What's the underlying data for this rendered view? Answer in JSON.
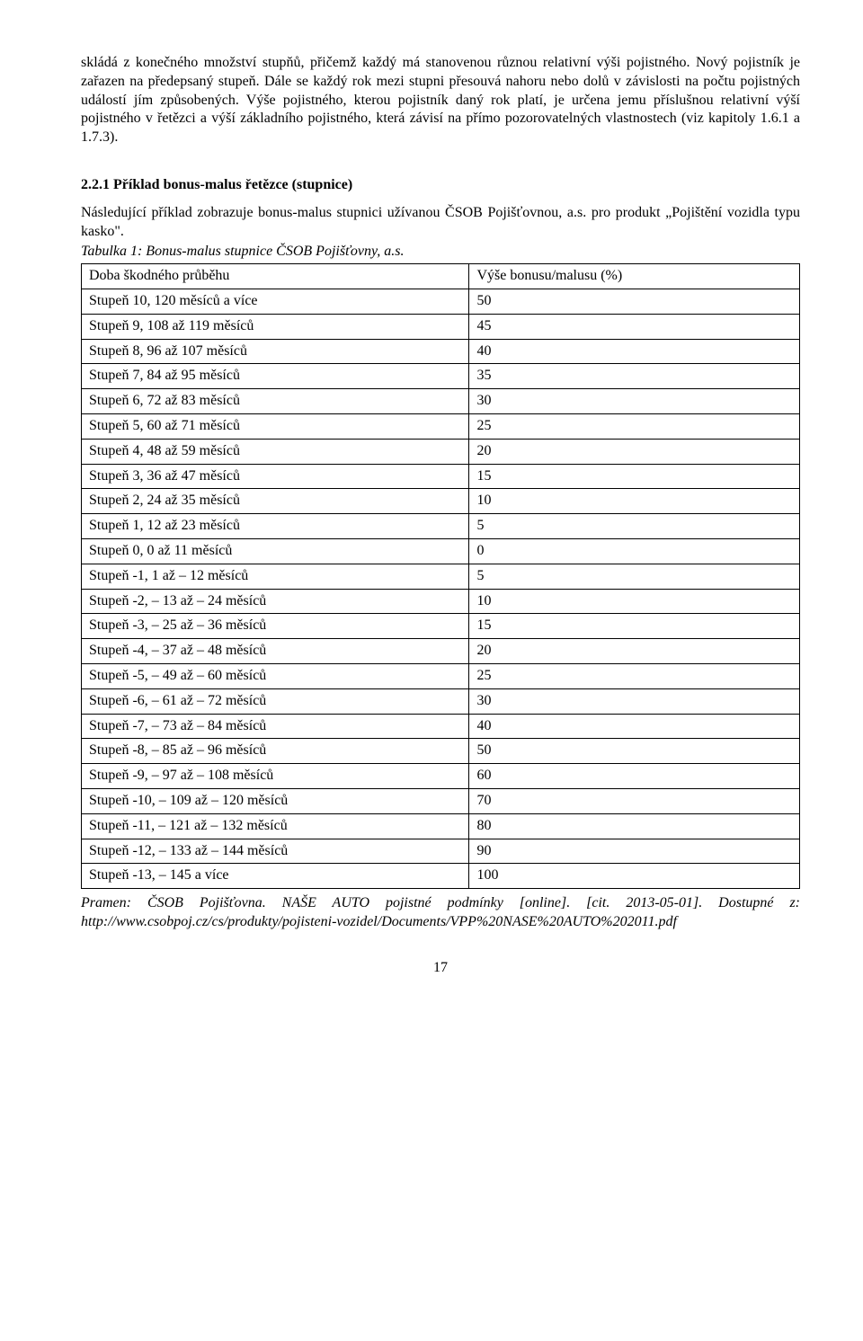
{
  "paragraph1": "skládá z konečného množství stupňů, přičemž každý má stanovenou různou relativní výši pojistného. Nový pojistník je zařazen na předepsaný stupeň. Dále se každý rok mezi stupni přesouvá nahoru nebo dolů v závislosti na počtu pojistných událostí jím způsobených. Výše pojistného, kterou pojistník daný rok platí, je určena jemu příslušnou relativní výší pojistného v řetězci a výší základního pojistného, která závisí na přímo pozorovatelných vlastnostech (viz kapitoly 1.6.1 a 1.7.3).",
  "heading": "2.2.1 Příklad bonus-malus řetězce (stupnice)",
  "intro": "Následující příklad zobrazuje bonus-malus stupnici užívanou ČSOB Pojišťovnou, a.s. pro produkt „Pojištění vozidla typu kasko\".",
  "caption": "Tabulka 1: Bonus-malus stupnice ČSOB Pojišťovny, a.s.",
  "table": {
    "header": [
      "Doba škodného průběhu",
      "Výše bonusu/malusu (%)"
    ],
    "rows": [
      [
        "Stupeň 10, 120 měsíců a více",
        "50"
      ],
      [
        "Stupeň 9, 108 až 119 měsíců",
        "45"
      ],
      [
        "Stupeň 8, 96 až 107 měsíců",
        "40"
      ],
      [
        "Stupeň 7, 84 až 95 měsíců",
        "35"
      ],
      [
        "Stupeň 6, 72 až 83 měsíců",
        "30"
      ],
      [
        "Stupeň 5, 60 až 71 měsíců",
        "25"
      ],
      [
        "Stupeň 4, 48 až 59 měsíců",
        "20"
      ],
      [
        "Stupeň 3, 36 až 47 měsíců",
        "15"
      ],
      [
        "Stupeň 2, 24 až 35 měsíců",
        "10"
      ],
      [
        "Stupeň 1, 12 až 23 měsíců",
        "5"
      ],
      [
        "Stupeň 0, 0 až 11 měsíců",
        "0"
      ],
      [
        "Stupeň -1, 1 až – 12 měsíců",
        "5"
      ],
      [
        "Stupeň -2, – 13 až – 24 měsíců",
        "10"
      ],
      [
        "Stupeň -3, – 25 až – 36 měsíců",
        "15"
      ],
      [
        "Stupeň -4, – 37 až – 48 měsíců",
        "20"
      ],
      [
        "Stupeň -5, – 49 až – 60 měsíců",
        "25"
      ],
      [
        "Stupeň -6, – 61 až – 72 měsíců",
        "30"
      ],
      [
        "Stupeň -7, – 73 až – 84 měsíců",
        "40"
      ],
      [
        "Stupeň -8, – 85 až – 96 měsíců",
        "50"
      ],
      [
        "Stupeň -9, – 97 až – 108 měsíců",
        "60"
      ],
      [
        "Stupeň -10, – 109 až – 120 měsíců",
        "70"
      ],
      [
        "Stupeň -11, – 121 až – 132 měsíců",
        "80"
      ],
      [
        "Stupeň -12, – 133 až – 144 měsíců",
        "90"
      ],
      [
        "Stupeň -13, – 145 a více",
        "100"
      ]
    ]
  },
  "citation": "Pramen: ČSOB Pojišťovna. NAŠE AUTO pojistné podmínky [online]. [cit. 2013-05-01]. Dostupné z: http://www.csobpoj.cz/cs/produkty/pojisteni-vozidel/Documents/VPP%20NASE%20AUTO%202011.pdf",
  "pageNumber": "17"
}
